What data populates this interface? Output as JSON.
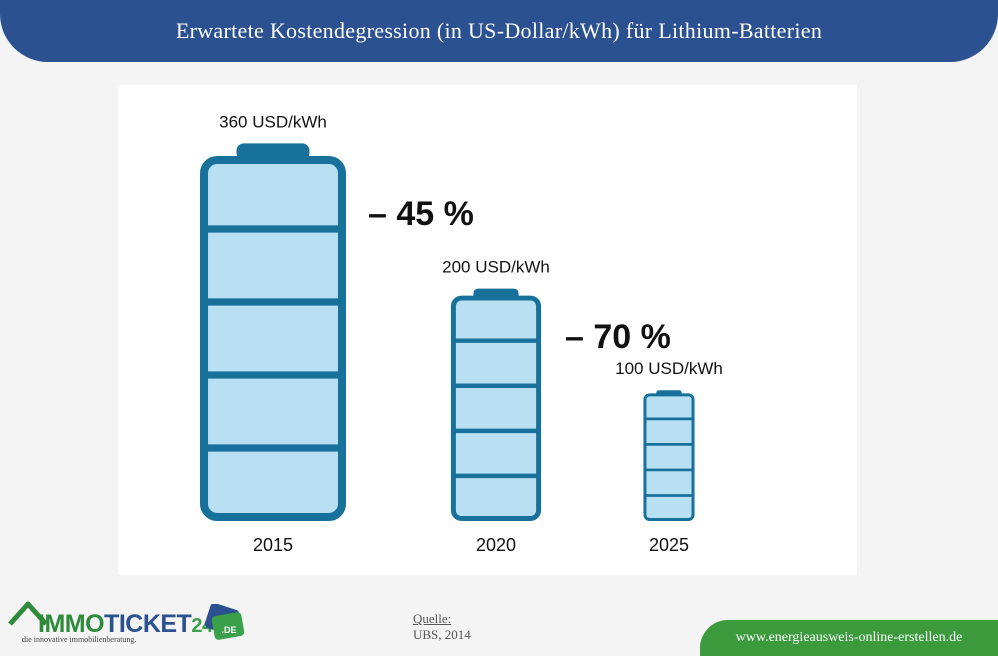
{
  "header": {
    "title": "Erwartete Kostendegression (in US-Dollar/kWh) für Lithium-Batterien"
  },
  "chart_data": {
    "type": "bar",
    "categories": [
      "2015",
      "2020",
      "2025"
    ],
    "values": [
      360,
      200,
      100
    ],
    "value_labels": [
      "360 USD/kWh",
      "200 USD/kWh",
      "100 USD/kWh"
    ],
    "annotations": [
      "– 45 %",
      "– 70 %"
    ],
    "unit": "USD/kWh",
    "ylim": [
      0,
      360
    ],
    "colors": {
      "stroke": "#17719b",
      "fill": "#b8e0f2"
    }
  },
  "footer": {
    "brand_immo": "IMMO",
    "brand_ticket": "TICKET",
    "brand_24": "24",
    "badge_text": ".DE",
    "tagline": "die innovative immobilienberatung.",
    "source_label": "Quelle:",
    "source_value": "UBS, 2014",
    "website": "www.energieausweis-online-erstellen.de"
  }
}
